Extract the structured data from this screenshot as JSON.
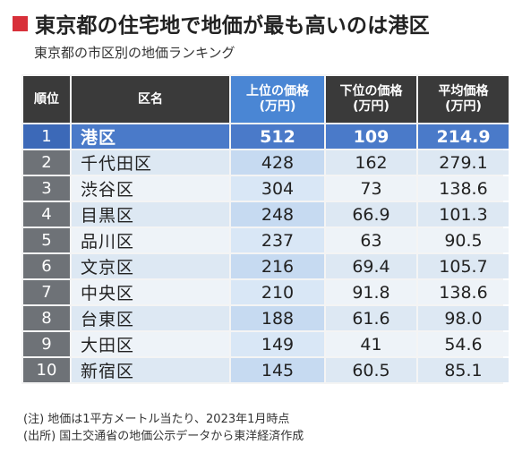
{
  "title": "東京都の住宅地で地価が最も高いのは港区",
  "subtitle": "東京都の市区別の地価ランキング",
  "colors": {
    "accent_mark": "#d8303a",
    "header_dark": "#3a3a3a",
    "header_highlight": "#4a86d4",
    "top_row": "#4a7ac9"
  },
  "table": {
    "headers": {
      "rank": "順位",
      "name": "区名",
      "upper_price": "上位の価格",
      "lower_price": "下位の価格",
      "avg_price": "平均価格",
      "unit": "(万円)"
    },
    "rows": [
      {
        "rank": "1",
        "name": "港区",
        "upper": "512",
        "lower": "109",
        "avg": "214.9"
      },
      {
        "rank": "2",
        "name": "千代田区",
        "upper": "428",
        "lower": "162",
        "avg": "279.1"
      },
      {
        "rank": "3",
        "name": "渋谷区",
        "upper": "304",
        "lower": "73",
        "avg": "138.6"
      },
      {
        "rank": "4",
        "name": "目黒区",
        "upper": "248",
        "lower": "66.9",
        "avg": "101.3"
      },
      {
        "rank": "5",
        "name": "品川区",
        "upper": "237",
        "lower": "63",
        "avg": "90.5"
      },
      {
        "rank": "6",
        "name": "文京区",
        "upper": "216",
        "lower": "69.4",
        "avg": "105.7"
      },
      {
        "rank": "7",
        "name": "中央区",
        "upper": "210",
        "lower": "91.8",
        "avg": "138.6"
      },
      {
        "rank": "8",
        "name": "台東区",
        "upper": "188",
        "lower": "61.6",
        "avg": "98.0"
      },
      {
        "rank": "9",
        "name": "大田区",
        "upper": "149",
        "lower": "41",
        "avg": "54.6"
      },
      {
        "rank": "10",
        "name": "新宿区",
        "upper": "145",
        "lower": "60.5",
        "avg": "85.1"
      }
    ]
  },
  "notes": {
    "note": "(注) 地価は1平方メートル当たり、2023年1月時点",
    "source": "(出所) 国土交通省の地価公示データから東洋経済作成"
  }
}
